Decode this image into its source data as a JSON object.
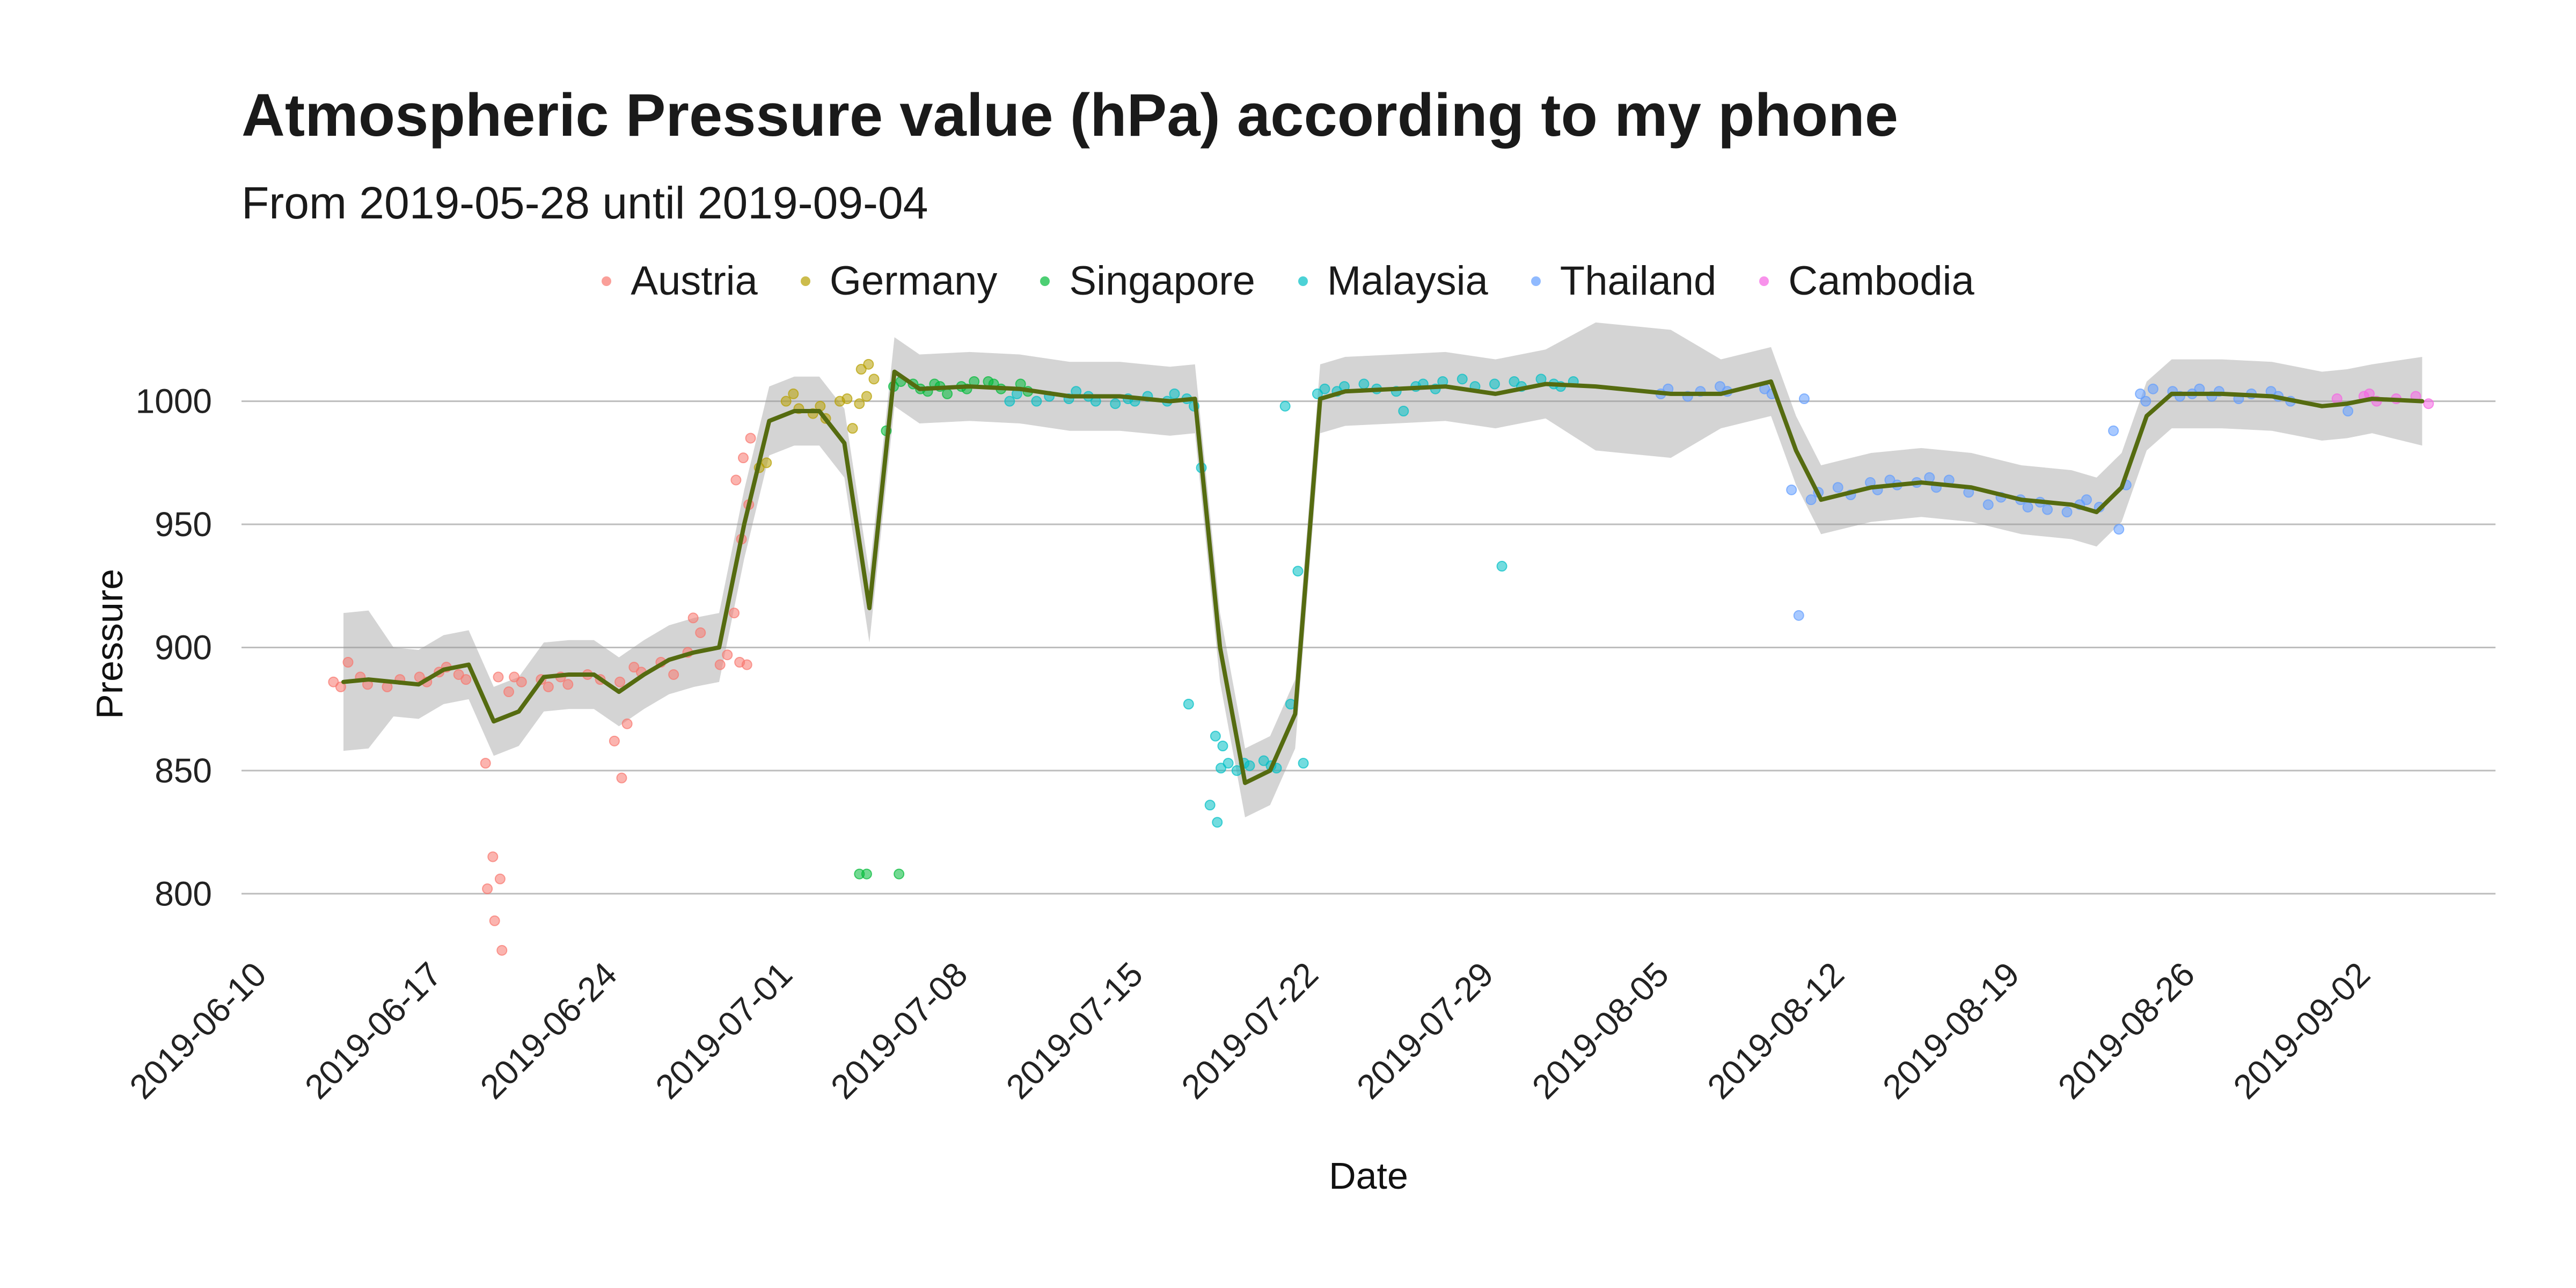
{
  "chart_data": {
    "type": "scatter",
    "title": "Atmospheric Pressure value (hPa) according to my phone",
    "subtitle": "From 2019-05-28 until 2019-09-04",
    "xlabel": "Date",
    "ylabel": "Pressure",
    "xlim": [
      "2019-06-10",
      "2019-09-04"
    ],
    "ylim": [
      775,
      1030
    ],
    "y_ticks": [
      800,
      850,
      900,
      950,
      1000
    ],
    "x_ticks": [
      "2019-06-10",
      "2019-06-17",
      "2019-06-24",
      "2019-07-01",
      "2019-07-08",
      "2019-07-15",
      "2019-07-22",
      "2019-07-29",
      "2019-08-05",
      "2019-08-12",
      "2019-08-19",
      "2019-08-26",
      "2019-09-02"
    ],
    "grid": "horizontal",
    "legend_position": "top-center",
    "series": [
      {
        "name": "Austria",
        "color": "#F8766D",
        "points": [
          [
            "2019-06-13",
            886
          ],
          [
            "2019-06-13",
            884
          ],
          [
            "2019-06-13",
            894
          ],
          [
            "2019-06-14",
            888
          ],
          [
            "2019-06-14",
            885
          ],
          [
            "2019-06-15",
            887
          ],
          [
            "2019-06-15",
            884
          ],
          [
            "2019-06-16",
            888
          ],
          [
            "2019-06-16",
            886
          ],
          [
            "2019-06-17",
            890
          ],
          [
            "2019-06-17",
            892
          ],
          [
            "2019-06-18",
            889
          ],
          [
            "2019-06-18",
            887
          ],
          [
            "2019-06-19",
            888
          ],
          [
            "2019-06-19",
            853
          ],
          [
            "2019-06-19",
            815
          ],
          [
            "2019-06-19",
            806
          ],
          [
            "2019-06-19",
            802
          ],
          [
            "2019-06-19",
            789
          ],
          [
            "2019-06-19",
            777
          ],
          [
            "2019-06-20",
            888
          ],
          [
            "2019-06-20",
            886
          ],
          [
            "2019-06-20",
            882
          ],
          [
            "2019-06-21",
            887
          ],
          [
            "2019-06-21",
            884
          ],
          [
            "2019-06-22",
            888
          ],
          [
            "2019-06-22",
            885
          ],
          [
            "2019-06-23",
            887
          ],
          [
            "2019-06-23",
            889
          ],
          [
            "2019-06-24",
            886
          ],
          [
            "2019-06-24",
            869
          ],
          [
            "2019-06-24",
            862
          ],
          [
            "2019-06-24",
            847
          ],
          [
            "2019-06-25",
            892
          ],
          [
            "2019-06-25",
            890
          ],
          [
            "2019-06-26",
            889
          ],
          [
            "2019-06-26",
            894
          ],
          [
            "2019-06-27",
            912
          ],
          [
            "2019-06-27",
            906
          ],
          [
            "2019-06-27",
            898
          ],
          [
            "2019-06-28",
            893
          ],
          [
            "2019-06-28",
            897
          ],
          [
            "2019-06-29",
            894
          ],
          [
            "2019-06-29",
            893
          ],
          [
            "2019-06-29",
            914
          ],
          [
            "2019-06-29",
            944
          ],
          [
            "2019-06-29",
            958
          ],
          [
            "2019-06-29",
            968
          ],
          [
            "2019-06-29",
            977
          ],
          [
            "2019-06-29",
            985
          ]
        ]
      },
      {
        "name": "Germany",
        "color": "#B79F00",
        "points": [
          [
            "2019-06-30",
            973
          ],
          [
            "2019-06-30",
            975
          ],
          [
            "2019-07-01",
            997
          ],
          [
            "2019-07-01",
            1000
          ],
          [
            "2019-07-01",
            1003
          ],
          [
            "2019-07-02",
            993
          ],
          [
            "2019-07-02",
            995
          ],
          [
            "2019-07-02",
            998
          ],
          [
            "2019-07-03",
            989
          ],
          [
            "2019-07-03",
            1000
          ],
          [
            "2019-07-03",
            1001
          ],
          [
            "2019-07-04",
            999
          ],
          [
            "2019-07-04",
            1002
          ],
          [
            "2019-07-04",
            1009
          ],
          [
            "2019-07-04",
            1013
          ],
          [
            "2019-07-04",
            1015
          ]
        ]
      },
      {
        "name": "Singapore",
        "color": "#00BA38",
        "points": [
          [
            "2019-07-04",
            808
          ],
          [
            "2019-07-04",
            808
          ],
          [
            "2019-07-05",
            808
          ],
          [
            "2019-07-05",
            988
          ],
          [
            "2019-07-05",
            1006
          ],
          [
            "2019-07-05",
            1008
          ],
          [
            "2019-07-06",
            1007
          ],
          [
            "2019-07-06",
            1005
          ],
          [
            "2019-07-06",
            1004
          ],
          [
            "2019-07-07",
            1006
          ],
          [
            "2019-07-07",
            1003
          ],
          [
            "2019-07-07",
            1007
          ],
          [
            "2019-07-08",
            1005
          ],
          [
            "2019-07-08",
            1008
          ],
          [
            "2019-07-08",
            1006
          ],
          [
            "2019-07-09",
            1007
          ],
          [
            "2019-07-09",
            1005
          ],
          [
            "2019-07-09",
            1008
          ],
          [
            "2019-07-10",
            1007
          ],
          [
            "2019-07-10",
            1004
          ]
        ]
      },
      {
        "name": "Malaysia",
        "color": "#00BFC4",
        "points": [
          [
            "2019-07-10",
            1000
          ],
          [
            "2019-07-10",
            1003
          ],
          [
            "2019-07-11",
            1002
          ],
          [
            "2019-07-11",
            1000
          ],
          [
            "2019-07-12",
            1001
          ],
          [
            "2019-07-12",
            1004
          ],
          [
            "2019-07-13",
            1002
          ],
          [
            "2019-07-13",
            1000
          ],
          [
            "2019-07-14",
            1001
          ],
          [
            "2019-07-14",
            999
          ],
          [
            "2019-07-15",
            1002
          ],
          [
            "2019-07-15",
            1000
          ],
          [
            "2019-07-16",
            1000
          ],
          [
            "2019-07-16",
            1003
          ],
          [
            "2019-07-17",
            1001
          ],
          [
            "2019-07-17",
            998
          ],
          [
            "2019-07-17",
            973
          ],
          [
            "2019-07-17",
            877
          ],
          [
            "2019-07-18",
            851
          ],
          [
            "2019-07-18",
            853
          ],
          [
            "2019-07-18",
            864
          ],
          [
            "2019-07-18",
            860
          ],
          [
            "2019-07-18",
            836
          ],
          [
            "2019-07-18",
            829
          ],
          [
            "2019-07-19",
            852
          ],
          [
            "2019-07-19",
            850
          ],
          [
            "2019-07-19",
            853
          ],
          [
            "2019-07-20",
            851
          ],
          [
            "2019-07-20",
            854
          ],
          [
            "2019-07-20",
            852
          ],
          [
            "2019-07-21",
            853
          ],
          [
            "2019-07-21",
            877
          ],
          [
            "2019-07-21",
            931
          ],
          [
            "2019-07-21",
            998
          ],
          [
            "2019-07-22",
            1003
          ],
          [
            "2019-07-22",
            1005
          ],
          [
            "2019-07-23",
            1004
          ],
          [
            "2019-07-23",
            1006
          ],
          [
            "2019-07-24",
            1005
          ],
          [
            "2019-07-24",
            1007
          ],
          [
            "2019-07-25",
            1004
          ],
          [
            "2019-07-25",
            996
          ],
          [
            "2019-07-26",
            1006
          ],
          [
            "2019-07-26",
            1007
          ],
          [
            "2019-07-27",
            1005
          ],
          [
            "2019-07-27",
            1008
          ],
          [
            "2019-07-28",
            1006
          ],
          [
            "2019-07-28",
            1009
          ],
          [
            "2019-07-29",
            1007
          ],
          [
            "2019-07-29",
            933
          ],
          [
            "2019-07-30",
            1008
          ],
          [
            "2019-07-30",
            1006
          ],
          [
            "2019-07-31",
            1007
          ],
          [
            "2019-07-31",
            1009
          ],
          [
            "2019-08-01",
            1008
          ],
          [
            "2019-08-01",
            1006
          ]
        ]
      },
      {
        "name": "Thailand",
        "color": "#619CFF",
        "points": [
          [
            "2019-08-05",
            1003
          ],
          [
            "2019-08-05",
            1005
          ],
          [
            "2019-08-06",
            1004
          ],
          [
            "2019-08-06",
            1002
          ],
          [
            "2019-08-07",
            1006
          ],
          [
            "2019-08-07",
            1004
          ],
          [
            "2019-08-09",
            1005
          ],
          [
            "2019-08-09",
            1003
          ],
          [
            "2019-08-10",
            1001
          ],
          [
            "2019-08-10",
            964
          ],
          [
            "2019-08-10",
            913
          ],
          [
            "2019-08-11",
            960
          ],
          [
            "2019-08-11",
            963
          ],
          [
            "2019-08-12",
            962
          ],
          [
            "2019-08-12",
            965
          ],
          [
            "2019-08-13",
            967
          ],
          [
            "2019-08-13",
            964
          ],
          [
            "2019-08-14",
            968
          ],
          [
            "2019-08-14",
            966
          ],
          [
            "2019-08-15",
            969
          ],
          [
            "2019-08-15",
            967
          ],
          [
            "2019-08-16",
            968
          ],
          [
            "2019-08-16",
            965
          ],
          [
            "2019-08-17",
            963
          ],
          [
            "2019-08-18",
            961
          ],
          [
            "2019-08-18",
            958
          ],
          [
            "2019-08-19",
            960
          ],
          [
            "2019-08-19",
            957
          ],
          [
            "2019-08-20",
            959
          ],
          [
            "2019-08-20",
            956
          ],
          [
            "2019-08-21",
            958
          ],
          [
            "2019-08-21",
            955
          ],
          [
            "2019-08-22",
            957
          ],
          [
            "2019-08-22",
            960
          ],
          [
            "2019-08-23",
            948
          ],
          [
            "2019-08-23",
            966
          ],
          [
            "2019-08-23",
            988
          ],
          [
            "2019-08-24",
            1000
          ],
          [
            "2019-08-24",
            1005
          ],
          [
            "2019-08-24",
            1003
          ],
          [
            "2019-08-25",
            1004
          ],
          [
            "2019-08-25",
            1002
          ],
          [
            "2019-08-26",
            1003
          ],
          [
            "2019-08-26",
            1005
          ],
          [
            "2019-08-27",
            1002
          ],
          [
            "2019-08-27",
            1004
          ],
          [
            "2019-08-28",
            1003
          ],
          [
            "2019-08-28",
            1001
          ],
          [
            "2019-08-29",
            1004
          ],
          [
            "2019-08-29",
            1002
          ],
          [
            "2019-08-30",
            1000
          ],
          [
            "2019-09-01",
            996
          ]
        ]
      },
      {
        "name": "Cambodia",
        "color": "#F564E3",
        "points": [
          [
            "2019-09-01",
            1001
          ],
          [
            "2019-09-02",
            1003
          ],
          [
            "2019-09-02",
            1000
          ],
          [
            "2019-09-02",
            1002
          ],
          [
            "2019-09-03",
            1001
          ],
          [
            "2019-09-04",
            999
          ],
          [
            "2019-09-04",
            1002
          ]
        ]
      }
    ],
    "trend": {
      "name": "smooth",
      "color": "#556B10",
      "points": [
        [
          "2019-06-13",
          886
        ],
        [
          "2019-06-14",
          887
        ],
        [
          "2019-06-15",
          886
        ],
        [
          "2019-06-16",
          885
        ],
        [
          "2019-06-17",
          891
        ],
        [
          "2019-06-18",
          893
        ],
        [
          "2019-06-19",
          870
        ],
        [
          "2019-06-20",
          874
        ],
        [
          "2019-06-21",
          888
        ],
        [
          "2019-06-22",
          889
        ],
        [
          "2019-06-23",
          889
        ],
        [
          "2019-06-24",
          882
        ],
        [
          "2019-06-25",
          889
        ],
        [
          "2019-06-26",
          895
        ],
        [
          "2019-06-27",
          898
        ],
        [
          "2019-06-28",
          900
        ],
        [
          "2019-06-29",
          950
        ],
        [
          "2019-06-30",
          992
        ],
        [
          "2019-07-01",
          996
        ],
        [
          "2019-07-02",
          996
        ],
        [
          "2019-07-03",
          983
        ],
        [
          "2019-07-04",
          916
        ],
        [
          "2019-07-05",
          1012
        ],
        [
          "2019-07-06",
          1005
        ],
        [
          "2019-07-08",
          1006
        ],
        [
          "2019-07-10",
          1005
        ],
        [
          "2019-07-12",
          1002
        ],
        [
          "2019-07-14",
          1002
        ],
        [
          "2019-07-16",
          1000
        ],
        [
          "2019-07-17",
          1001
        ],
        [
          "2019-07-18",
          900
        ],
        [
          "2019-07-19",
          845
        ],
        [
          "2019-07-20",
          850
        ],
        [
          "2019-07-21",
          873
        ],
        [
          "2019-07-22",
          1001
        ],
        [
          "2019-07-23",
          1004
        ],
        [
          "2019-07-25",
          1005
        ],
        [
          "2019-07-27",
          1006
        ],
        [
          "2019-07-29",
          1003
        ],
        [
          "2019-07-31",
          1007
        ],
        [
          "2019-08-02",
          1006
        ],
        [
          "2019-08-05",
          1003
        ],
        [
          "2019-08-07",
          1003
        ],
        [
          "2019-08-09",
          1008
        ],
        [
          "2019-08-10",
          980
        ],
        [
          "2019-08-11",
          960
        ],
        [
          "2019-08-13",
          965
        ],
        [
          "2019-08-15",
          967
        ],
        [
          "2019-08-17",
          965
        ],
        [
          "2019-08-19",
          960
        ],
        [
          "2019-08-21",
          958
        ],
        [
          "2019-08-22",
          955
        ],
        [
          "2019-08-23",
          965
        ],
        [
          "2019-08-24",
          994
        ],
        [
          "2019-08-25",
          1003
        ],
        [
          "2019-08-27",
          1003
        ],
        [
          "2019-08-29",
          1002
        ],
        [
          "2019-08-31",
          998
        ],
        [
          "2019-09-01",
          999
        ],
        [
          "2019-09-02",
          1001
        ],
        [
          "2019-09-04",
          1000
        ]
      ]
    }
  }
}
